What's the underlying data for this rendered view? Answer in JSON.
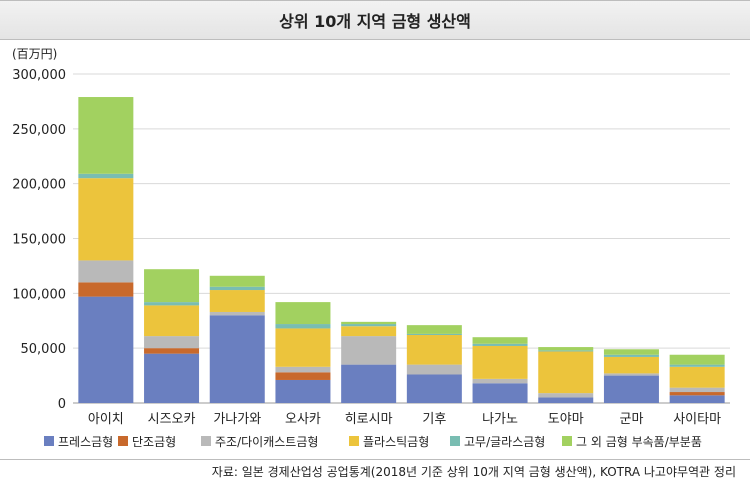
{
  "chart_data": {
    "type": "bar",
    "stacked": true,
    "title": "상위 10개 지역 금형 생산액",
    "unit_label": "(百万円)",
    "ylim": [
      0,
      300000
    ],
    "yticks": [
      0,
      50000,
      100000,
      150000,
      200000,
      250000,
      300000
    ],
    "ytick_labels": [
      "0",
      "50,000",
      "100,000",
      "150,000",
      "200,000",
      "250,000",
      "300,000"
    ],
    "grid": true,
    "legend_position": "bottom",
    "categories": [
      "아이치",
      "시즈오카",
      "가나가와",
      "오사카",
      "히로시마",
      "기후",
      "나가노",
      "도야마",
      "군마",
      "사이타마"
    ],
    "series": [
      {
        "name": "프레스금형",
        "color": "#6a7fc0",
        "values": [
          97000,
          45000,
          80000,
          21000,
          35000,
          26000,
          18000,
          5000,
          25000,
          7000
        ]
      },
      {
        "name": "단조금형",
        "color": "#c8692c",
        "values": [
          13000,
          5000,
          0,
          7000,
          0,
          0,
          0,
          0,
          0,
          3000
        ]
      },
      {
        "name": "주조/다이캐스트금형",
        "color": "#b9b9b9",
        "values": [
          20000,
          11000,
          3000,
          5000,
          26000,
          9000,
          4000,
          4000,
          2000,
          4000
        ]
      },
      {
        "name": "플라스틱금형",
        "color": "#ecc43c",
        "values": [
          75000,
          28000,
          20000,
          35000,
          9000,
          27000,
          30000,
          38000,
          15000,
          19000
        ]
      },
      {
        "name": "고무/글라스금형",
        "color": "#79bdb2",
        "values": [
          4000,
          3000,
          3000,
          4000,
          2000,
          1000,
          2000,
          1000,
          2000,
          2000
        ]
      },
      {
        "name": "그 외 금형 부속품/부분품",
        "color": "#a2d160",
        "values": [
          70000,
          30000,
          10000,
          20000,
          2000,
          8000,
          6000,
          3000,
          5000,
          9000
        ]
      }
    ]
  },
  "source_note": "자료: 일본 경제산업성 공업통계(2018년 기준 상위 10개 지역 금형 생산액), KOTRA 나고야무역관 정리"
}
